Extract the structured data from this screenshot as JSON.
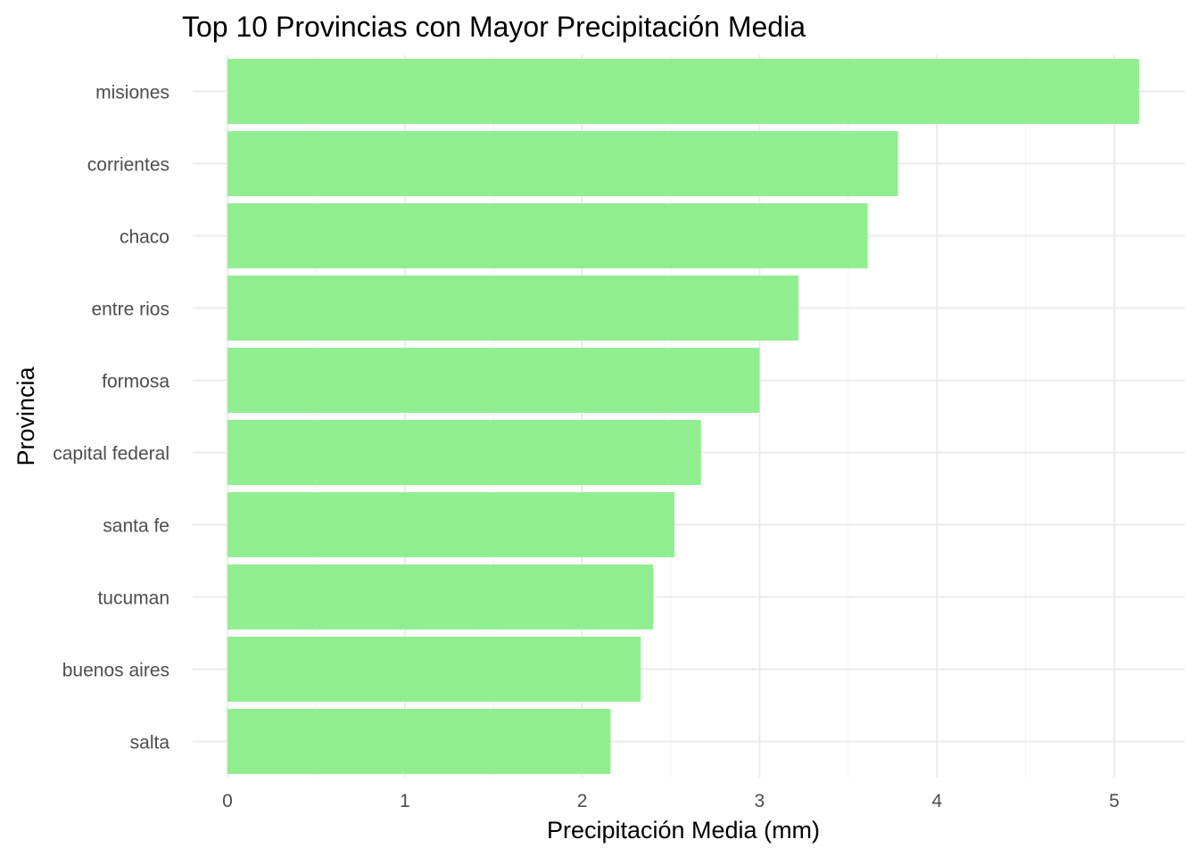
{
  "chart_data": {
    "type": "bar",
    "orientation": "horizontal",
    "title": "Top 10 Provincias con Mayor Precipitación Media",
    "xlabel": "Precipitación Media (mm)",
    "ylabel": "Provincia",
    "categories": [
      "misiones",
      "corrientes",
      "chaco",
      "entre rios",
      "formosa",
      "capital federal",
      "santa fe",
      "tucuman",
      "buenos aires",
      "salta"
    ],
    "values": [
      5.14,
      3.78,
      3.61,
      3.22,
      3.0,
      2.67,
      2.52,
      2.4,
      2.33,
      2.16
    ],
    "xlim": [
      0,
      5.4
    ],
    "xticks": [
      "0",
      "1",
      "2",
      "3",
      "4",
      "5"
    ],
    "bar_color": "#90EE90",
    "grid": true
  }
}
